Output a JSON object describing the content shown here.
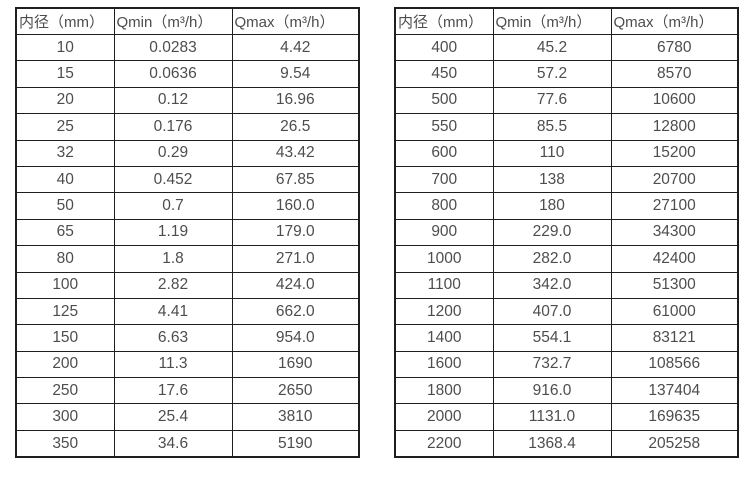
{
  "colors": {
    "background": "#ffffff",
    "text": "#4d4d4d",
    "border": "#1f1f1f"
  },
  "tables": [
    {
      "name": "flow-rate-table-small-diameters",
      "headers": [
        "内径（mm）",
        "Qmin（m³/h）",
        "Qmax（m³/h）"
      ],
      "rows": [
        [
          "10",
          "0.0283",
          "4.42"
        ],
        [
          "15",
          "0.0636",
          "9.54"
        ],
        [
          "20",
          "0.12",
          "16.96"
        ],
        [
          "25",
          "0.176",
          "26.5"
        ],
        [
          "32",
          "0.29",
          "43.42"
        ],
        [
          "40",
          "0.452",
          "67.85"
        ],
        [
          "50",
          "0.7",
          "160.0"
        ],
        [
          "65",
          "1.19",
          "179.0"
        ],
        [
          "80",
          "1.8",
          "271.0"
        ],
        [
          "100",
          "2.82",
          "424.0"
        ],
        [
          "125",
          "4.41",
          "662.0"
        ],
        [
          "150",
          "6.63",
          "954.0"
        ],
        [
          "200",
          "11.3",
          "1690"
        ],
        [
          "250",
          "17.6",
          "2650"
        ],
        [
          "300",
          "25.4",
          "3810"
        ],
        [
          "350",
          "34.6",
          "5190"
        ]
      ]
    },
    {
      "name": "flow-rate-table-large-diameters",
      "headers": [
        "内径（mm）",
        "Qmin（m³/h）",
        "Qmax（m³/h）"
      ],
      "rows": [
        [
          "400",
          "45.2",
          "6780"
        ],
        [
          "450",
          "57.2",
          "8570"
        ],
        [
          "500",
          "77.6",
          "10600"
        ],
        [
          "550",
          "85.5",
          "12800"
        ],
        [
          "600",
          "110",
          "15200"
        ],
        [
          "700",
          "138",
          "20700"
        ],
        [
          "800",
          "180",
          "27100"
        ],
        [
          "900",
          "229.0",
          "34300"
        ],
        [
          "1000",
          "282.0",
          "42400"
        ],
        [
          "1100",
          "342.0",
          "51300"
        ],
        [
          "1200",
          "407.0",
          "61000"
        ],
        [
          "1400",
          "554.1",
          "83121"
        ],
        [
          "1600",
          "732.7",
          "108566"
        ],
        [
          "1800",
          "916.0",
          "137404"
        ],
        [
          "2000",
          "1131.0",
          "169635"
        ],
        [
          "2200",
          "1368.4",
          "205258"
        ]
      ]
    }
  ]
}
